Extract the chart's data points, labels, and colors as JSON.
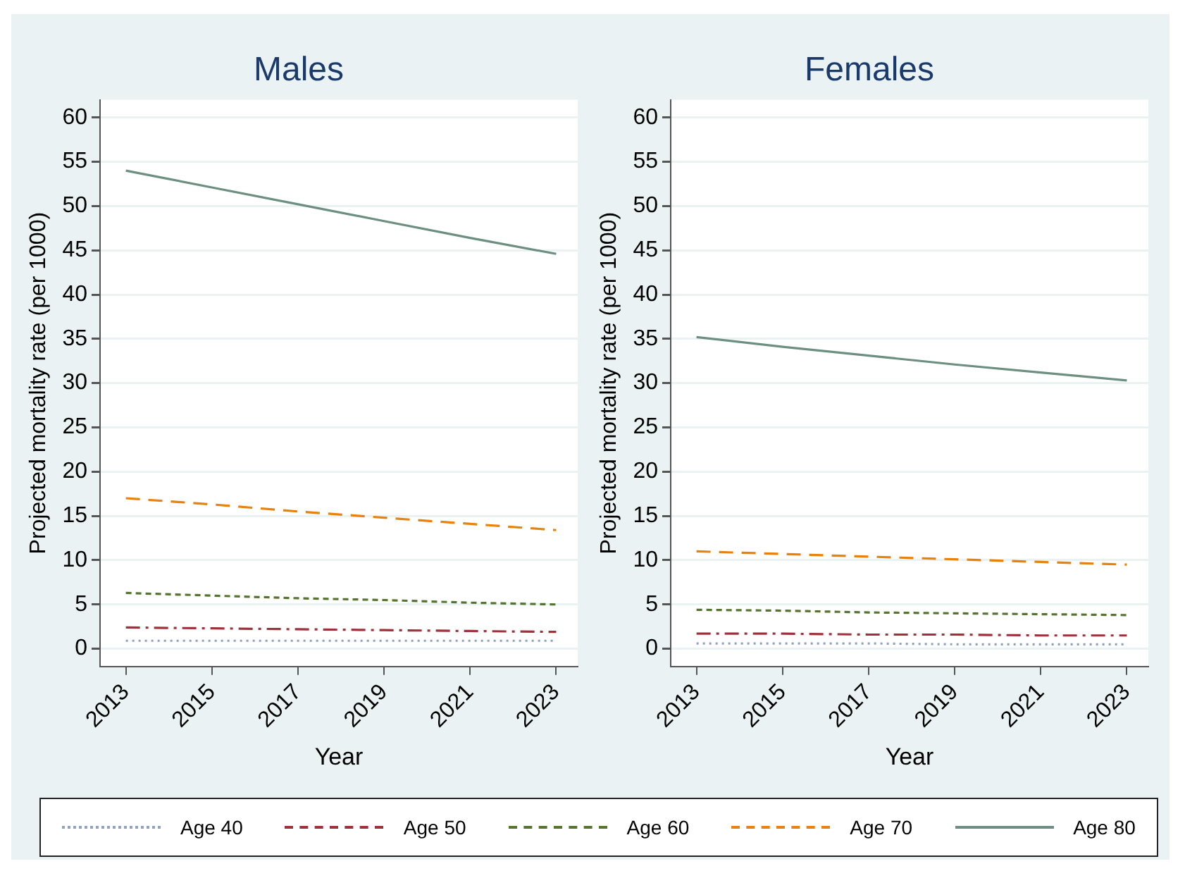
{
  "chart_data": [
    {
      "type": "line",
      "title": "Males",
      "xlabel": "Year",
      "ylabel": "Projected mortality rate (per 1000)",
      "x": [
        2013,
        2015,
        2017,
        2019,
        2021,
        2023
      ],
      "xlim": [
        2012.4,
        2023.5
      ],
      "xticks": [
        2013,
        2015,
        2017,
        2019,
        2021,
        2023
      ],
      "ylim": [
        -2,
        62
      ],
      "yticks": [
        0,
        5,
        10,
        15,
        20,
        25,
        30,
        35,
        40,
        45,
        50,
        55,
        60
      ],
      "grid": "y",
      "legend": "bottom",
      "marker": "none",
      "series": [
        {
          "name": "Age 40",
          "color": "#8fa3bf",
          "line_style": "dotted",
          "values": [
            0.9,
            0.9,
            0.9,
            0.9,
            0.9,
            0.9
          ]
        },
        {
          "name": "Age 50",
          "color": "#a0303a",
          "line_style": "dashdot",
          "values": [
            2.4,
            2.3,
            2.2,
            2.1,
            2.0,
            1.9
          ]
        },
        {
          "name": "Age 60",
          "color": "#55752f",
          "line_style": "dashed",
          "values": [
            6.3,
            6.0,
            5.7,
            5.5,
            5.2,
            5.0
          ]
        },
        {
          "name": "Age 70",
          "color": "#e8820c",
          "line_style": "longdash",
          "values": [
            17,
            16.3,
            15.5,
            14.8,
            14.1,
            13.4
          ]
        },
        {
          "name": "Age 80",
          "color": "#6d8f82",
          "line_style": "solid",
          "values": [
            54,
            52.1,
            50.2,
            48.3,
            46.4,
            44.6
          ]
        }
      ]
    },
    {
      "type": "line",
      "title": "Females",
      "xlabel": "Year",
      "ylabel": "Projected mortality rate (per 1000)",
      "x": [
        2013,
        2015,
        2017,
        2019,
        2021,
        2023
      ],
      "xlim": [
        2012.4,
        2023.5
      ],
      "xticks": [
        2013,
        2015,
        2017,
        2019,
        2021,
        2023
      ],
      "ylim": [
        -2,
        62
      ],
      "yticks": [
        0,
        5,
        10,
        15,
        20,
        25,
        30,
        35,
        40,
        45,
        50,
        55,
        60
      ],
      "grid": "y",
      "marker": "none",
      "series": [
        {
          "color": "#8fa3bf",
          "line_style": "dotted",
          "values": [
            0.6,
            0.6,
            0.6,
            0.5,
            0.5,
            0.5
          ]
        },
        {
          "color": "#a0303a",
          "line_style": "dashdot",
          "values": [
            1.7,
            1.7,
            1.6,
            1.6,
            1.5,
            1.5
          ]
        },
        {
          "color": "#55752f",
          "line_style": "dashed",
          "values": [
            4.4,
            4.3,
            4.1,
            4.0,
            3.9,
            3.8
          ]
        },
        {
          "color": "#e8820c",
          "line_style": "longdash",
          "values": [
            11,
            10.7,
            10.4,
            10.1,
            9.8,
            9.5
          ]
        },
        {
          "color": "#6d8f82",
          "line_style": "solid",
          "values": [
            35.2,
            34.1,
            33.1,
            32.1,
            31.2,
            30.3
          ]
        }
      ]
    }
  ]
}
